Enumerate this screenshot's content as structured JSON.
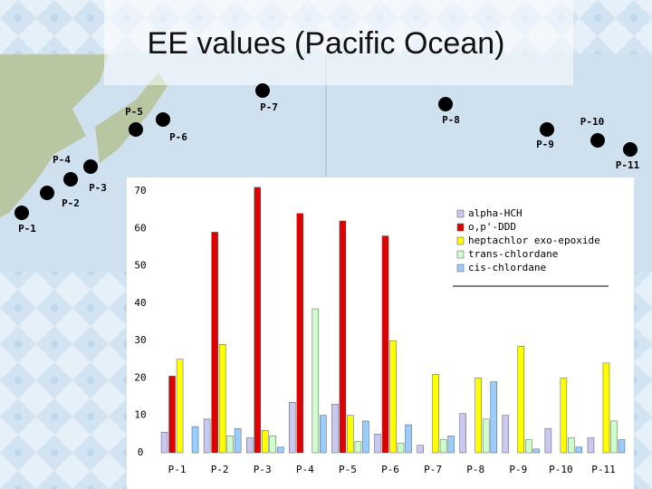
{
  "chart_data": {
    "type": "bar",
    "title": "EE values (Pacific Ocean)",
    "categories": [
      "P-1",
      "P-2",
      "P-3",
      "P-4",
      "P-5",
      "P-6",
      "P-7",
      "P-8",
      "P-9",
      "P-10",
      "P-11"
    ],
    "series": [
      {
        "name": "alpha-HCH",
        "color": "#c8c8f0",
        "values": [
          5.5,
          9,
          4,
          13.5,
          13,
          5,
          2,
          10.5,
          10,
          6.5,
          4
        ]
      },
      {
        "name": "o,p'-DDD",
        "color": "#e00000",
        "values": [
          20.5,
          59,
          71,
          64,
          62,
          58,
          0,
          0,
          0,
          0,
          0
        ]
      },
      {
        "name": "heptachlor exo-epoxide",
        "color": "#ffff00",
        "values": [
          25,
          29,
          6,
          0,
          10,
          30,
          21,
          20,
          28.5,
          20,
          24
        ]
      },
      {
        "name": "trans-chlordane",
        "color": "#ccffcc",
        "values": [
          0,
          4.5,
          4.5,
          38.5,
          3,
          2.5,
          3.5,
          9,
          3.5,
          4,
          8.5
        ]
      },
      {
        "name": "cis-chlordane",
        "color": "#99ccff",
        "values": [
          7,
          6.5,
          1.5,
          10,
          8.5,
          7.5,
          4.5,
          19,
          1,
          1.5,
          3.5
        ]
      }
    ],
    "ylim": [
      0,
      70
    ],
    "yticks": [
      0,
      10,
      20,
      30,
      40,
      50,
      60,
      70
    ],
    "grid": false,
    "legend": "upper right"
  }
}
